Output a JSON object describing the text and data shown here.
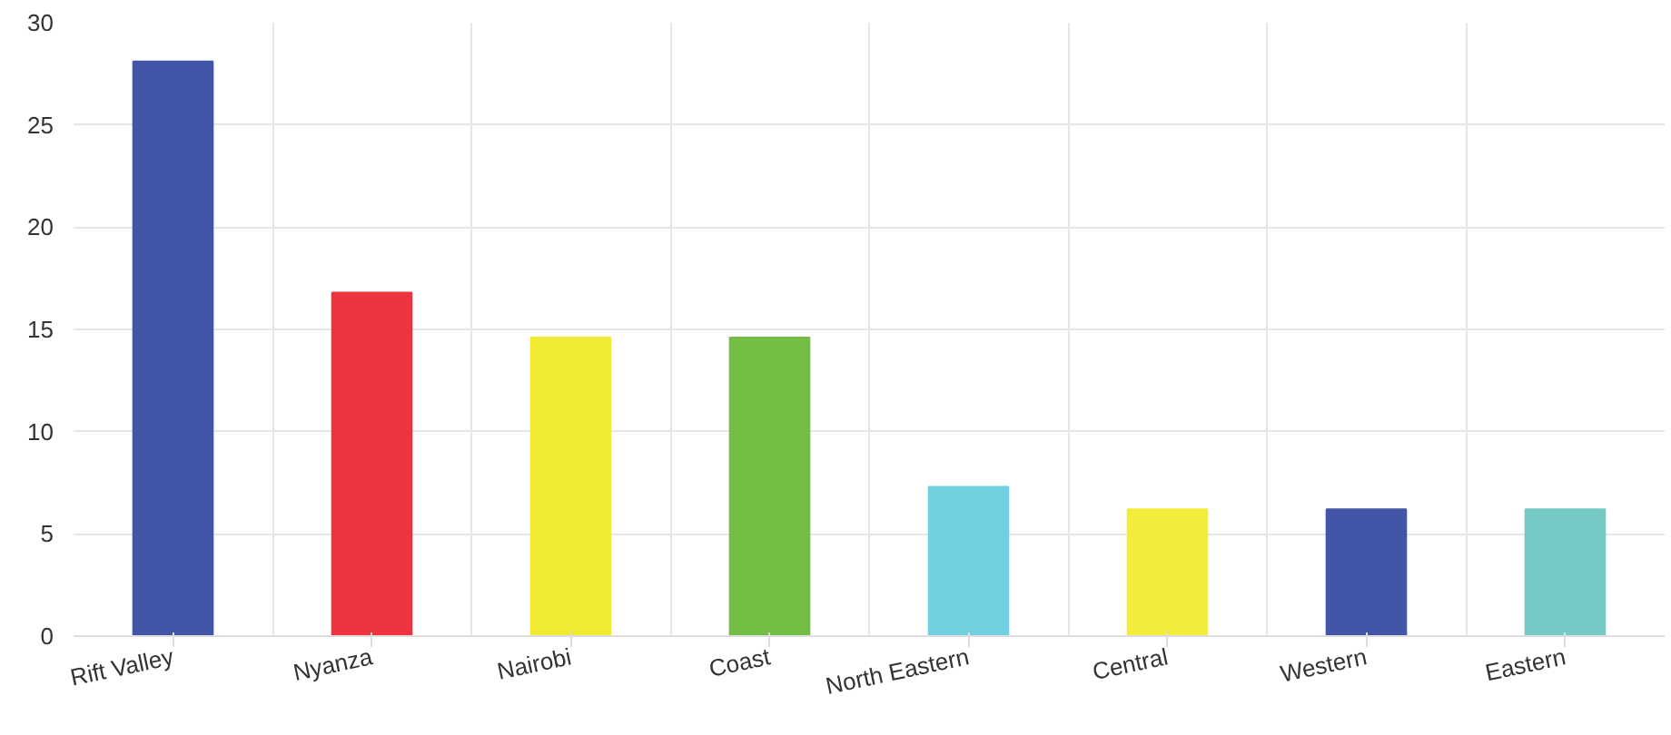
{
  "chart_data": {
    "type": "bar",
    "categories": [
      "Rift Valley",
      "Nyanza",
      "Nairobi",
      "Coast",
      "North Eastern",
      "Central",
      "Western",
      "Eastern"
    ],
    "values": [
      28.1,
      16.8,
      14.6,
      14.6,
      7.3,
      6.2,
      6.2,
      6.2
    ],
    "colors": [
      "#4355a6",
      "#ee343f",
      "#f1ea33",
      "#72bd44",
      "#72cfdf",
      "#f3ec3a",
      "#4355a6",
      "#76cac6"
    ],
    "ylim": [
      0,
      30
    ],
    "yticks": [
      0,
      5,
      10,
      15,
      20,
      25,
      30
    ],
    "grid": true
  }
}
